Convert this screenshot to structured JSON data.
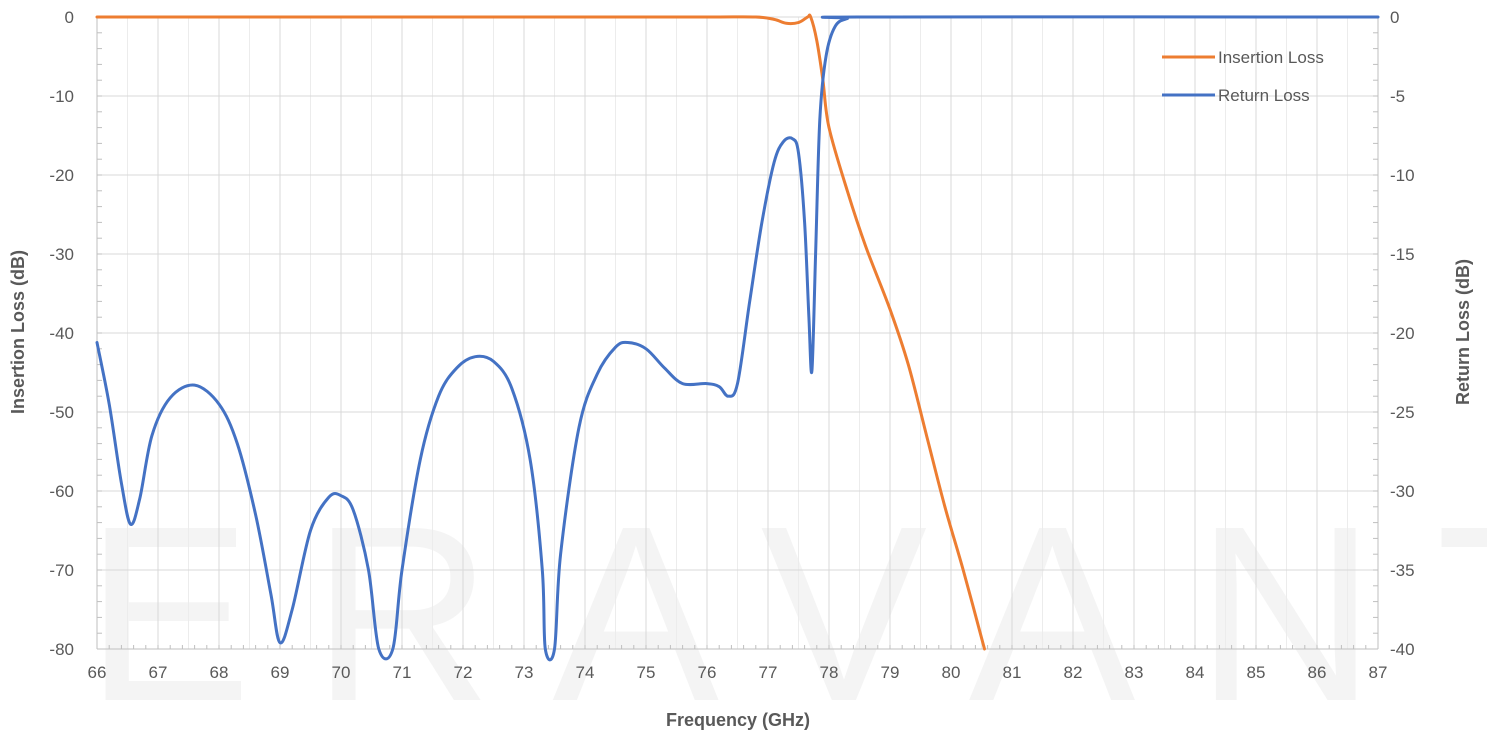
{
  "watermark": "ERAVANT",
  "chart_data": {
    "type": "line",
    "title": "",
    "xlabel": "Frequency (GHz)",
    "ylabel_left": "Insertion Loss (dB)",
    "ylabel_right": "Return Loss (dB)",
    "xlim": [
      66,
      87
    ],
    "ylim_left": [
      -80,
      0
    ],
    "ylim_right": [
      -40,
      0
    ],
    "x_ticks": [
      "66",
      "67",
      "68",
      "69",
      "70",
      "71",
      "72",
      "73",
      "74",
      "75",
      "76",
      "77",
      "78",
      "79",
      "80",
      "81",
      "82",
      "83",
      "84",
      "85",
      "86",
      "87"
    ],
    "y_ticks_left": [
      "0",
      "-10",
      "-20",
      "-30",
      "-40",
      "-50",
      "-60",
      "-70",
      "-80"
    ],
    "y_ticks_right": [
      "0",
      "-5",
      "-10",
      "-15",
      "-20",
      "-25",
      "-30",
      "-35",
      "-40"
    ],
    "grid": true,
    "legend_position": "top-right",
    "series": [
      {
        "name": "Insertion Loss",
        "axis": "left",
        "color": "#ED7D31",
        "points": [
          [
            66,
            0
          ],
          [
            70,
            0
          ],
          [
            74,
            0
          ],
          [
            76,
            0
          ],
          [
            76.8,
            0
          ],
          [
            77.1,
            -0.3
          ],
          [
            77.3,
            -0.8
          ],
          [
            77.5,
            -0.7
          ],
          [
            77.65,
            0
          ],
          [
            77.7,
            0
          ],
          [
            77.8,
            -3
          ],
          [
            77.9,
            -8
          ],
          [
            78,
            -14
          ],
          [
            78.3,
            -22
          ],
          [
            78.6,
            -29
          ],
          [
            79,
            -37
          ],
          [
            79.3,
            -44
          ],
          [
            79.6,
            -53
          ],
          [
            79.9,
            -62
          ],
          [
            80.2,
            -70
          ],
          [
            80.55,
            -80
          ]
        ]
      },
      {
        "name": "Return Loss",
        "axis": "right",
        "color": "#4472C4",
        "points": [
          [
            66,
            -20.6
          ],
          [
            66.2,
            -24.5
          ],
          [
            66.4,
            -29.5
          ],
          [
            66.55,
            -32.1
          ],
          [
            66.7,
            -30.5
          ],
          [
            66.9,
            -26.5
          ],
          [
            67.2,
            -24.1
          ],
          [
            67.6,
            -23.3
          ],
          [
            68,
            -24.5
          ],
          [
            68.3,
            -27
          ],
          [
            68.6,
            -31.5
          ],
          [
            68.85,
            -36.5
          ],
          [
            69,
            -39.6
          ],
          [
            69.2,
            -37.5
          ],
          [
            69.5,
            -32.5
          ],
          [
            69.8,
            -30.4
          ],
          [
            70,
            -30.3
          ],
          [
            70.2,
            -31.2
          ],
          [
            70.45,
            -35
          ],
          [
            70.62,
            -40
          ],
          [
            70.85,
            -40
          ],
          [
            71,
            -35
          ],
          [
            71.3,
            -28
          ],
          [
            71.6,
            -24
          ],
          [
            71.9,
            -22.2
          ],
          [
            72.2,
            -21.5
          ],
          [
            72.5,
            -21.8
          ],
          [
            72.8,
            -23.5
          ],
          [
            73.1,
            -28
          ],
          [
            73.3,
            -35
          ],
          [
            73.35,
            -40
          ],
          [
            73.5,
            -40
          ],
          [
            73.6,
            -34
          ],
          [
            73.9,
            -26
          ],
          [
            74.2,
            -22.6
          ],
          [
            74.5,
            -20.9
          ],
          [
            74.7,
            -20.6
          ],
          [
            75,
            -21
          ],
          [
            75.3,
            -22.2
          ],
          [
            75.6,
            -23.2
          ],
          [
            76,
            -23.2
          ],
          [
            76.2,
            -23.4
          ],
          [
            76.35,
            -24
          ],
          [
            76.5,
            -23.2
          ],
          [
            76.7,
            -18
          ],
          [
            76.9,
            -13
          ],
          [
            77.1,
            -9.2
          ],
          [
            77.25,
            -7.9
          ],
          [
            77.4,
            -7.7
          ],
          [
            77.5,
            -8.6
          ],
          [
            77.6,
            -13
          ],
          [
            77.67,
            -19
          ],
          [
            77.72,
            -22.4
          ],
          [
            77.78,
            -15
          ],
          [
            77.85,
            -6.5
          ],
          [
            77.95,
            -2.5
          ],
          [
            78.1,
            -0.6
          ],
          [
            78.3,
            -0.1
          ],
          [
            78.6,
            0
          ],
          [
            87,
            0
          ]
        ]
      }
    ]
  }
}
